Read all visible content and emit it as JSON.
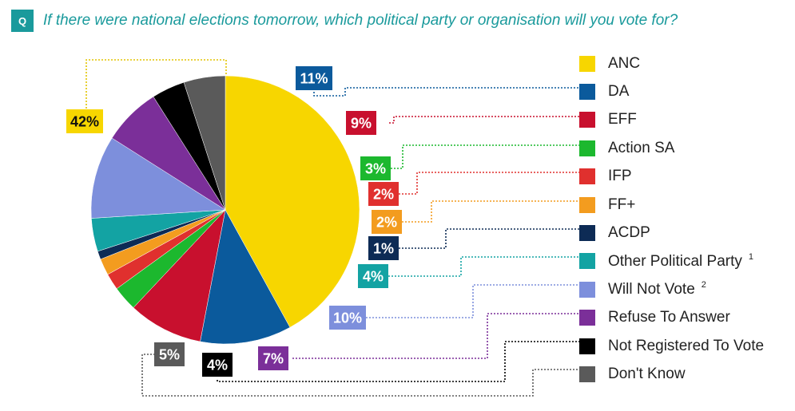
{
  "header": {
    "badge": "Q",
    "question": "If there were national elections tomorrow, which political party or organisation will you vote for?"
  },
  "chart_data": {
    "type": "pie",
    "title": "",
    "start_angle_deg": 0,
    "direction": "clockwise",
    "slices": [
      {
        "name": "ANC",
        "value": 42,
        "label": "42%",
        "color": "#f7d600",
        "label_text_color": "#111111"
      },
      {
        "name": "DA",
        "value": 11,
        "label": "11%",
        "color": "#0b5a9c",
        "label_text_color": "#ffffff"
      },
      {
        "name": "EFF",
        "value": 9,
        "label": "9%",
        "color": "#c8102e",
        "label_text_color": "#ffffff"
      },
      {
        "name": "Action SA",
        "value": 3,
        "label": "3%",
        "color": "#1cb82e",
        "label_text_color": "#ffffff"
      },
      {
        "name": "IFP",
        "value": 2,
        "label": "2%",
        "color": "#e0302e",
        "label_text_color": "#ffffff"
      },
      {
        "name": "FF+",
        "value": 2,
        "label": "2%",
        "color": "#f39c1f",
        "label_text_color": "#ffffff"
      },
      {
        "name": "ACDP",
        "value": 1,
        "label": "1%",
        "color": "#0d2b55",
        "label_text_color": "#ffffff"
      },
      {
        "name": "Other Political Party",
        "value": 4,
        "label": "4%",
        "color": "#13a3a3",
        "label_text_color": "#ffffff",
        "footnote": "1"
      },
      {
        "name": "Will Not Vote",
        "value": 10,
        "label": "10%",
        "color": "#7d8fdc",
        "label_text_color": "#ffffff",
        "footnote": "2"
      },
      {
        "name": "Refuse To Answer",
        "value": 7,
        "label": "7%",
        "color": "#7b2f99",
        "label_text_color": "#ffffff"
      },
      {
        "name": "Not Registered To Vote",
        "value": 4,
        "label": "4%",
        "color": "#000000",
        "label_text_color": "#ffffff"
      },
      {
        "name": "Don't Know",
        "value": 5,
        "label": "5%",
        "color": "#5a5a5a",
        "label_text_color": "#ffffff"
      }
    ],
    "legend_position": "right"
  }
}
